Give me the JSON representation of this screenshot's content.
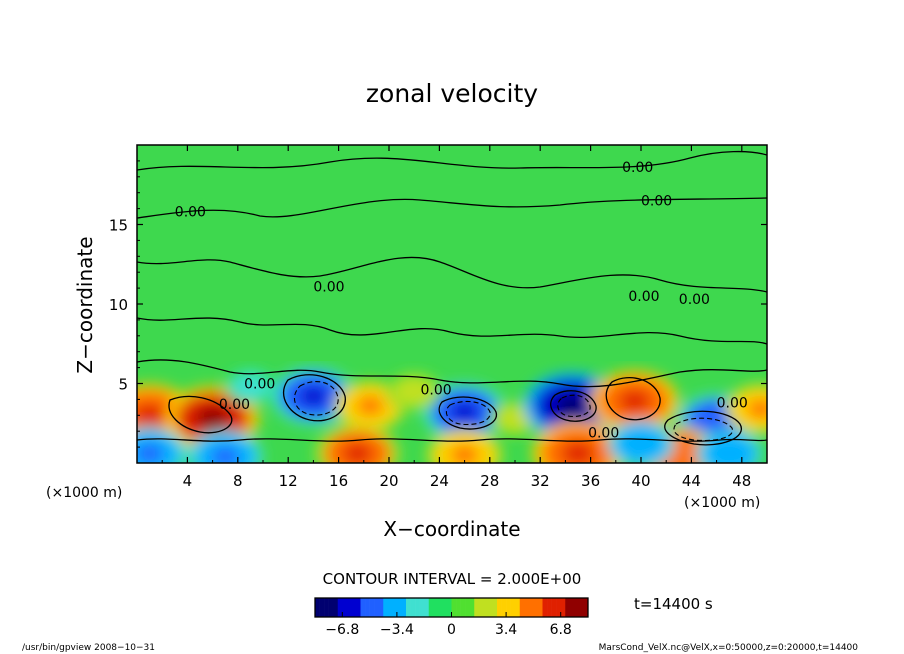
{
  "chart_data": {
    "type": "heatmap",
    "title": "zonal velocity",
    "xlabel": "X−coordinate",
    "ylabel": "Z−coordinate",
    "x_unit_label_left": "(×1000 m)",
    "x_unit_label_right": "(×1000 m)",
    "xlim": [
      0,
      50
    ],
    "ylim": [
      0,
      20
    ],
    "x_ticks": [
      4,
      8,
      12,
      16,
      20,
      24,
      28,
      32,
      36,
      40,
      44,
      48
    ],
    "y_ticks": [
      5,
      10,
      15
    ],
    "contour_interval_label": "CONTOUR INTERVAL = 2.000E+00",
    "contour_labels": [
      "0.00",
      "0.00",
      "0.00",
      "0.00",
      "0.00",
      "0.00",
      "0.00",
      "0.00",
      "0.00",
      "0.00",
      "0.00"
    ],
    "colorbar": {
      "range": [
        -8.5,
        8.5
      ],
      "tick_labels": [
        "−6.8",
        "−3.4",
        "0",
        "3.4",
        "6.8"
      ],
      "tick_values": [
        -6.8,
        -3.4,
        0,
        3.4,
        6.8
      ],
      "colors": [
        "#000070",
        "#0000d0",
        "#2060ff",
        "#00b0ff",
        "#40e0d0",
        "#20e060",
        "#50e030",
        "#c0e020",
        "#ffd000",
        "#ff7000",
        "#e02000",
        "#900000"
      ]
    },
    "time_label": "t=14400 s",
    "features": [
      {
        "x": 1.0,
        "z": 3.0,
        "value": 6.8
      },
      {
        "x": 6.0,
        "z": 2.8,
        "value": 7.2
      },
      {
        "x": 14.0,
        "z": 4.2,
        "value": -6.0
      },
      {
        "x": 18.5,
        "z": 3.6,
        "value": 4.5
      },
      {
        "x": 26.0,
        "z": 3.2,
        "value": -6.0
      },
      {
        "x": 30.0,
        "z": 2.8,
        "value": 2.0
      },
      {
        "x": 34.5,
        "z": 3.6,
        "value": -7.5
      },
      {
        "x": 39.5,
        "z": 3.9,
        "value": 6.5
      },
      {
        "x": 46.0,
        "z": 2.6,
        "value": -5.5
      },
      {
        "x": 17.5,
        "z": 0.6,
        "value": 6.0
      },
      {
        "x": 26.0,
        "z": 0.5,
        "value": 5.0
      },
      {
        "x": 35.0,
        "z": 0.6,
        "value": 7.0
      },
      {
        "x": 43.0,
        "z": 0.6,
        "value": 5.5
      },
      {
        "x": 49.5,
        "z": 3.4,
        "value": 4.5
      },
      {
        "x": 40.0,
        "z": 1.2,
        "value": -4.0
      },
      {
        "x": 7.0,
        "z": 0.4,
        "value": -5.0
      },
      {
        "x": 1.0,
        "z": 0.6,
        "value": -5.0
      },
      {
        "x": 47.0,
        "z": 0.6,
        "value": -4.0
      },
      {
        "x": 22.0,
        "z": 4.5,
        "value": 2.5
      },
      {
        "x": 9.0,
        "z": 4.8,
        "value": -2.0
      }
    ],
    "grid": false
  },
  "footer": {
    "left": "/usr/bin/gpview   2008−10−31",
    "right": "MarsCond_VelX.nc@VelX,x=0:50000,z=0:20000,t=14400"
  }
}
